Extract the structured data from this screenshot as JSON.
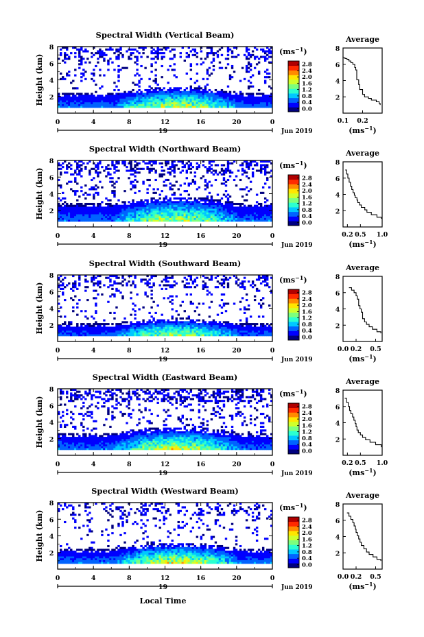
{
  "figure": {
    "shared_xlabel": "Local Time",
    "date_label": "Jun 2019",
    "day_label": "19",
    "unit_label": "(ms",
    "unit_exp": "−1",
    "colorbar_ticks": [
      "0.0",
      "0.4",
      "0.8",
      "1.2",
      "1.6",
      "2.0",
      "2.4",
      "2.8"
    ],
    "colormap": [
      "#00007f",
      "#0000ff",
      "#0063ff",
      "#00c8ff",
      "#2bffd0",
      "#7dff7d",
      "#d0ff2b",
      "#ffe600",
      "#ff8a00",
      "#ff2a00",
      "#b00000"
    ]
  },
  "chart_data": [
    {
      "type": "heatmap",
      "title": "Spectral Width (Vertical Beam)",
      "ylabel": "Height (km)",
      "xlim": [
        0,
        24
      ],
      "ylim": [
        0,
        8
      ],
      "xticks": [
        "0",
        "4",
        "8",
        "12",
        "16",
        "20",
        "0"
      ],
      "yticks": [
        "2",
        "4",
        "6",
        "8"
      ],
      "value_range": [
        0,
        3
      ],
      "band_top_km": 2.6,
      "band_peak_value": 1.6,
      "sparse_fill": 0.25,
      "profile": {
        "title": "Average",
        "xlabel": "(ms",
        "xlim": [
          0.1,
          0.3
        ],
        "xticks": [
          "0.1",
          "0.2"
        ],
        "ylim": [
          0,
          8
        ],
        "yticks": [
          "2",
          "4",
          "6",
          "8"
        ],
        "width_ms": [
          0.29,
          0.285,
          0.27,
          0.245,
          0.23,
          0.21,
          0.2,
          0.2,
          0.185,
          0.185,
          0.18,
          0.18,
          0.17,
          0.17,
          0.17,
          0.17,
          0.165,
          0.16,
          0.16,
          0.15,
          0.14,
          0.13,
          0.12,
          0.11,
          0.1,
          0.1
        ],
        "height_km": [
          1.0,
          1.2,
          1.4,
          1.6,
          1.8,
          2.0,
          2.3,
          2.6,
          2.9,
          3.2,
          3.5,
          3.8,
          4.1,
          4.4,
          4.7,
          5.0,
          5.3,
          5.6,
          5.8,
          6.0,
          6.2,
          6.4,
          6.6,
          6.7,
          6.8,
          7.0
        ]
      }
    },
    {
      "type": "heatmap",
      "title": "Spectral Width (Northward Beam)",
      "ylabel": "Height (km)",
      "xlim": [
        0,
        24
      ],
      "ylim": [
        0,
        8
      ],
      "xticks": [
        "0",
        "4",
        "8",
        "12",
        "16",
        "20",
        "0"
      ],
      "yticks": [
        "2",
        "4",
        "6",
        "8"
      ],
      "value_range": [
        0,
        3
      ],
      "band_top_km": 3.0,
      "band_peak_value": 1.5,
      "sparse_fill": 0.3,
      "profile": {
        "title": "Average",
        "xlabel": "(ms",
        "xlim": [
          0.1,
          1.0
        ],
        "xticks": [
          "0.2",
          "0.5",
          "1.0"
        ],
        "ylim": [
          0,
          8
        ],
        "yticks": [
          "2",
          "4",
          "6",
          "8"
        ],
        "width_ms": [
          0.98,
          0.88,
          0.75,
          0.65,
          0.6,
          0.52,
          0.48,
          0.44,
          0.42,
          0.38,
          0.36,
          0.33,
          0.3,
          0.27,
          0.24,
          0.21,
          0.18,
          0.15
        ],
        "height_km": [
          1.0,
          1.2,
          1.5,
          1.8,
          2.1,
          2.4,
          2.7,
          3.0,
          3.3,
          3.6,
          3.9,
          4.2,
          4.6,
          5.0,
          5.5,
          6.0,
          6.5,
          7.0
        ]
      }
    },
    {
      "type": "heatmap",
      "title": "Spectral Width (Southward Beam)",
      "ylabel": "Height (km)",
      "xlim": [
        0,
        24
      ],
      "ylim": [
        0,
        8
      ],
      "xticks": [
        "0",
        "4",
        "8",
        "12",
        "16",
        "20",
        "0"
      ],
      "yticks": [
        "2",
        "4",
        "6",
        "8"
      ],
      "value_range": [
        0,
        3
      ],
      "band_top_km": 2.3,
      "band_peak_value": 1.5,
      "sparse_fill": 0.22,
      "profile": {
        "title": "Average",
        "xlabel": "(ms",
        "xlim": [
          0.0,
          0.6
        ],
        "xticks": [
          "0.0",
          "0.2",
          "0.5"
        ],
        "ylim": [
          0,
          8
        ],
        "yticks": [
          "2",
          "4",
          "6",
          "8"
        ],
        "width_ms": [
          0.58,
          0.52,
          0.45,
          0.4,
          0.36,
          0.33,
          0.3,
          0.3,
          0.28,
          0.26,
          0.24,
          0.24,
          0.22,
          0.2,
          0.17,
          0.13,
          0.09
        ],
        "height_km": [
          1.0,
          1.2,
          1.5,
          1.8,
          2.1,
          2.4,
          2.8,
          3.2,
          3.6,
          4.0,
          4.4,
          4.8,
          5.2,
          5.6,
          6.0,
          6.3,
          6.6
        ]
      }
    },
    {
      "type": "heatmap",
      "title": "Spectral Width (Eastward Beam)",
      "ylabel": "Height (km)",
      "xlim": [
        0,
        24
      ],
      "ylim": [
        0,
        8
      ],
      "xticks": [
        "0",
        "4",
        "8",
        "12",
        "16",
        "20",
        "0"
      ],
      "yticks": [
        "2",
        "4",
        "6",
        "8"
      ],
      "value_range": [
        0,
        3
      ],
      "band_top_km": 2.8,
      "band_peak_value": 1.6,
      "sparse_fill": 0.32,
      "profile": {
        "title": "Average",
        "xlabel": "(ms",
        "xlim": [
          0.1,
          1.0
        ],
        "xticks": [
          "0.2",
          "0.5",
          "1.0"
        ],
        "ylim": [
          0,
          8
        ],
        "yticks": [
          "2",
          "4",
          "6",
          "8"
        ],
        "width_ms": [
          0.98,
          0.85,
          0.72,
          0.62,
          0.55,
          0.5,
          0.45,
          0.42,
          0.4,
          0.38,
          0.35,
          0.32,
          0.28,
          0.25,
          0.22,
          0.18,
          0.14
        ],
        "height_km": [
          1.0,
          1.3,
          1.6,
          1.9,
          2.2,
          2.5,
          2.8,
          3.1,
          3.5,
          3.9,
          4.3,
          4.7,
          5.1,
          5.5,
          6.0,
          6.5,
          7.0
        ]
      }
    },
    {
      "type": "heatmap",
      "title": "Spectral Width (Westward Beam)",
      "ylabel": "Height (km)",
      "xlim": [
        0,
        24
      ],
      "ylim": [
        0,
        8
      ],
      "xticks": [
        "0",
        "4",
        "8",
        "12",
        "16",
        "20",
        "0"
      ],
      "yticks": [
        "2",
        "4",
        "6",
        "8"
      ],
      "value_range": [
        0,
        3
      ],
      "band_top_km": 2.6,
      "band_peak_value": 1.7,
      "sparse_fill": 0.18,
      "profile": {
        "title": "Average",
        "xlabel": "(ms",
        "xlim": [
          0.0,
          0.6
        ],
        "xticks": [
          "0.0",
          "0.2",
          "0.5"
        ],
        "ylim": [
          0,
          8
        ],
        "yticks": [
          "2",
          "4",
          "6",
          "8"
        ],
        "width_ms": [
          0.58,
          0.52,
          0.46,
          0.4,
          0.36,
          0.32,
          0.28,
          0.26,
          0.24,
          0.22,
          0.2,
          0.19,
          0.17,
          0.15,
          0.12,
          0.09,
          0.06
        ],
        "height_km": [
          1.0,
          1.2,
          1.5,
          1.8,
          2.1,
          2.5,
          2.9,
          3.3,
          3.7,
          4.1,
          4.5,
          4.9,
          5.3,
          5.7,
          6.1,
          6.5,
          6.9
        ]
      }
    }
  ]
}
